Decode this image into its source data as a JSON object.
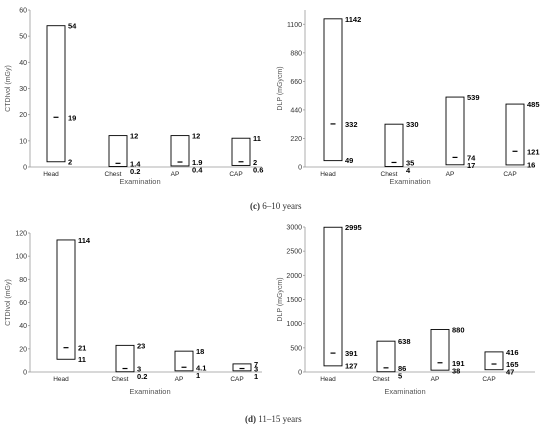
{
  "captions": {
    "c": {
      "letter": "(c)",
      "text": "6–10 years"
    },
    "d": {
      "letter": "(d)",
      "text": "11–15 years"
    }
  },
  "chart_data": [
    {
      "type": "bar",
      "ylabel": "CTDIvol (mGy)",
      "xlabel": "Examination",
      "ylim": [
        0,
        60
      ],
      "yticks": [
        0,
        10,
        20,
        30,
        40,
        50,
        60
      ],
      "categories": [
        "Head",
        "Chest",
        "AP",
        "CAP"
      ],
      "max": [
        54,
        12,
        12,
        11
      ],
      "median": [
        19,
        1.4,
        1.9,
        2
      ],
      "min": [
        2,
        0.2,
        0.4,
        0.6
      ],
      "max_labels": [
        "54",
        "12",
        "12",
        "11"
      ],
      "median_labels": [
        "19",
        "1.4",
        "1.9",
        "2"
      ],
      "min_labels": [
        "2",
        "0.2",
        "0.4",
        "0.6"
      ]
    },
    {
      "type": "bar",
      "ylabel": "DLP (mGycm)",
      "xlabel": "Examination",
      "ylim": [
        0,
        1210
      ],
      "yticks": [
        0,
        220,
        440,
        660,
        880,
        1100
      ],
      "categories": [
        "Head",
        "Chest",
        "AP",
        "CAP"
      ],
      "max": [
        1142,
        330,
        539,
        485
      ],
      "median": [
        332,
        35,
        74,
        121
      ],
      "min": [
        49,
        4,
        17,
        16
      ],
      "max_labels": [
        "1142",
        "330",
        "539",
        "485"
      ],
      "median_labels": [
        "332",
        "35",
        "74",
        "121"
      ],
      "min_labels": [
        "49",
        "4",
        "17",
        "16"
      ]
    },
    {
      "type": "bar",
      "ylabel": "CTDIvol (mGy)",
      "xlabel": "Examination",
      "ylim": [
        0,
        120
      ],
      "yticks": [
        0,
        20,
        40,
        60,
        80,
        100,
        120
      ],
      "categories": [
        "Head",
        "Chest",
        "AP",
        "CAP"
      ],
      "max": [
        114,
        23,
        18,
        7
      ],
      "median": [
        21,
        3,
        4.1,
        3
      ],
      "min": [
        11,
        0.2,
        1,
        1
      ],
      "max_labels": [
        "114",
        "23",
        "18",
        "7"
      ],
      "median_labels": [
        "21",
        "3",
        "4.1",
        "3"
      ],
      "min_labels": [
        "11",
        "0.2",
        "1",
        "1"
      ]
    },
    {
      "type": "bar",
      "ylabel": "DLP (mGycm)",
      "xlabel": "Examination",
      "ylim": [
        0,
        3000
      ],
      "yticks": [
        0,
        500,
        1000,
        1500,
        2000,
        2500,
        3000
      ],
      "categories": [
        "Head",
        "Chest",
        "AP",
        "CAP"
      ],
      "max": [
        2995,
        638,
        880,
        416
      ],
      "median": [
        391,
        86,
        191,
        165
      ],
      "min": [
        127,
        5,
        38,
        47
      ],
      "max_labels": [
        "2995",
        "638",
        "880",
        "416"
      ],
      "median_labels": [
        "391",
        "86",
        "191",
        "165"
      ],
      "min_labels": [
        "127",
        "5",
        "38",
        "47"
      ]
    }
  ]
}
